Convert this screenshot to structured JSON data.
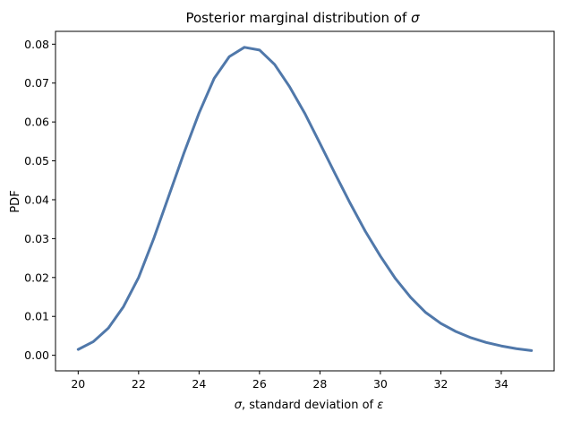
{
  "chart_data": {
    "type": "line",
    "title": "Posterior marginal distribution of ",
    "title_symbol": "σ",
    "xlabel_symbol": "σ",
    "xlabel": ", standard deviation of ",
    "xlabel_symbol2": "ε",
    "ylabel": "PDF",
    "xlim": [
      19.25,
      35.75
    ],
    "ylim": [
      -0.004,
      0.0833
    ],
    "xticks": [
      20,
      22,
      24,
      26,
      28,
      30,
      32,
      34
    ],
    "yticks": [
      0.0,
      0.01,
      0.02,
      0.03,
      0.04,
      0.05,
      0.06,
      0.07,
      0.08
    ],
    "ytick_labels": [
      "0.00",
      "0.01",
      "0.02",
      "0.03",
      "0.04",
      "0.05",
      "0.06",
      "0.07",
      "0.08"
    ],
    "grid": false,
    "series": [
      {
        "color": "#5078aa",
        "x": [
          20.0,
          20.5,
          21.0,
          21.5,
          22.0,
          22.5,
          23.0,
          23.5,
          24.0,
          24.5,
          25.0,
          25.5,
          26.0,
          26.5,
          27.0,
          27.5,
          28.0,
          28.5,
          29.0,
          29.5,
          30.0,
          30.5,
          31.0,
          31.5,
          32.0,
          32.5,
          33.0,
          33.5,
          34.0,
          34.5,
          35.0
        ],
        "y": [
          0.0015,
          0.0035,
          0.007,
          0.0125,
          0.02,
          0.03,
          0.041,
          0.052,
          0.0623,
          0.0712,
          0.0768,
          0.0792,
          0.0785,
          0.0748,
          0.069,
          0.0622,
          0.0545,
          0.0467,
          0.0391,
          0.0319,
          0.0255,
          0.0197,
          0.0149,
          0.011,
          0.0082,
          0.0061,
          0.0045,
          0.0033,
          0.0024,
          0.0017,
          0.0012
        ]
      }
    ]
  }
}
